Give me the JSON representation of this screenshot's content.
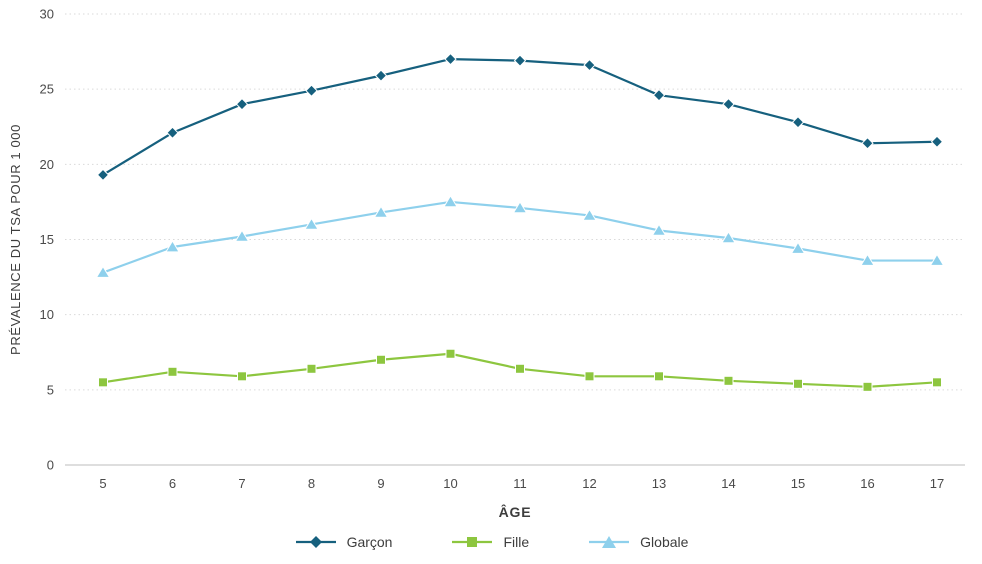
{
  "chart_data": {
    "type": "line",
    "title": "",
    "xlabel": "ÂGE",
    "ylabel": "PRÉVALENCE DU TSA POUR 1 000",
    "x": [
      5,
      6,
      7,
      8,
      9,
      10,
      11,
      12,
      13,
      14,
      15,
      16,
      17
    ],
    "ylim": [
      0,
      30
    ],
    "yticks": [
      0,
      5,
      10,
      15,
      20,
      25,
      30
    ],
    "grid": "horizontal-dotted",
    "legend_position": "bottom",
    "series": [
      {
        "name": "Garçon",
        "marker": "diamond",
        "color": "#16607e",
        "values": [
          19.3,
          22.1,
          24.0,
          24.9,
          25.9,
          27.0,
          26.9,
          26.6,
          24.6,
          24.0,
          22.8,
          21.4,
          21.5
        ]
      },
      {
        "name": "Fille",
        "marker": "square",
        "color": "#8dc63f",
        "values": [
          5.5,
          6.2,
          5.9,
          6.4,
          7.0,
          7.4,
          6.4,
          5.9,
          5.9,
          5.6,
          5.4,
          5.2,
          5.5
        ]
      },
      {
        "name": "Globale",
        "marker": "triangle",
        "color": "#8ed0ec",
        "values": [
          12.8,
          14.5,
          15.2,
          16.0,
          16.8,
          17.5,
          17.1,
          16.6,
          15.6,
          15.1,
          14.4,
          13.6,
          13.6
        ]
      }
    ]
  }
}
